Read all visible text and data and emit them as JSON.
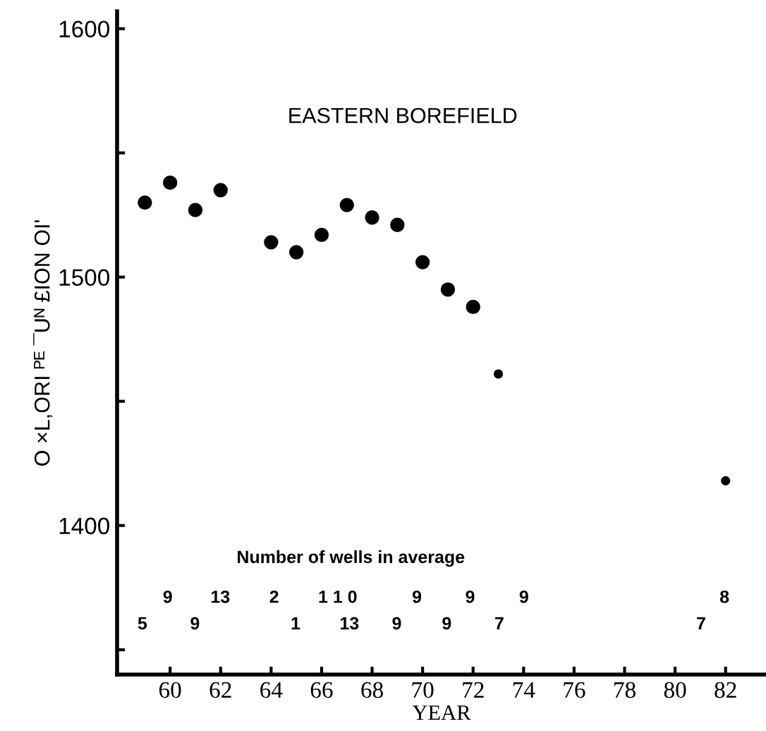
{
  "chart_data": {
    "type": "scatter",
    "title": "EASTERN BOREFIELD",
    "xlabel": "YEAR",
    "ylabel": "O ×L,ORI ᴾᴱ ¯Uᴺ £ION OI'",
    "series": [
      {
        "color": "#000000",
        "x": [
          59,
          60,
          61,
          62,
          64,
          65,
          66,
          67,
          68,
          69,
          70,
          71,
          72
        ],
        "values": [
          1530,
          1538,
          1527,
          1535,
          1514,
          1510,
          1517,
          1529,
          1524,
          1521,
          1506,
          1495,
          1488
        ]
      },
      {
        "color": "#000000",
        "x": [
          73,
          82
        ],
        "values": [
          1461,
          1418
        ]
      }
    ],
    "annotations": [
      "Number of wells in average",
      "9",
      "13",
      "2",
      "1 1 0",
      "9",
      "9",
      "9",
      "8",
      "5",
      "9",
      "1",
      "13",
      "9",
      "9",
      "7",
      "7"
    ],
    "xlim": [
      57.9,
      83.6
    ],
    "ylim": [
      1340,
      1607
    ],
    "xticks": [
      60,
      62,
      64,
      66,
      68,
      70,
      72,
      74,
      76,
      78,
      80,
      82
    ],
    "yticks": [
      {
        "value": 1350,
        "label": null
      },
      1400,
      {
        "value": 1450,
        "label": null
      },
      1500,
      {
        "value": 1550,
        "label": null
      },
      1600
    ],
    "marker": "circle",
    "grid": false,
    "legend": false
  }
}
